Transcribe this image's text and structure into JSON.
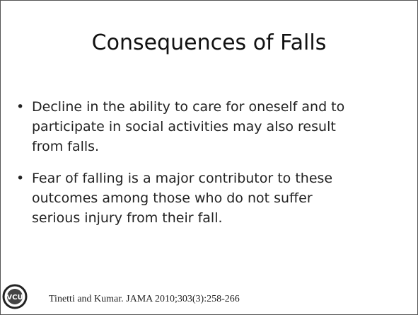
{
  "slide": {
    "title": "Consequences of Falls",
    "bullets": [
      {
        "lines": [
          "Decline in the ability to care for oneself and to",
          "participate in social activities may also result",
          "from falls."
        ]
      },
      {
        "lines": [
          "Fear of falling is a major contributor to these",
          "outcomes among those who do not suffer",
          "serious injury from their fall."
        ]
      }
    ],
    "logo": "VCU",
    "citation": "Tinetti and Kumar. JAMA 2010;303(3):258-266"
  }
}
